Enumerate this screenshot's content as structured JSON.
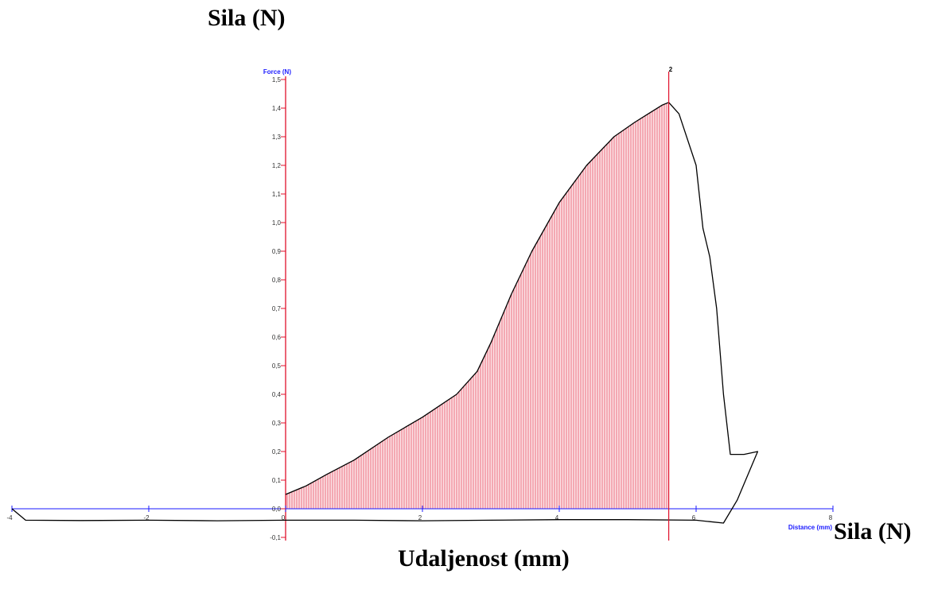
{
  "labels": {
    "top_left": "Sila  (N)",
    "right": "Sila  (N)",
    "bottom": "Udaljenost (mm)"
  },
  "chart_data": {
    "type": "line",
    "xlabel": "Distance (mm)",
    "ylabel": "Force (N)",
    "xlim": [
      -4,
      8
    ],
    "ylim": [
      -0.1,
      1.5
    ],
    "x_ticks": [
      -4,
      -2,
      0,
      2,
      4,
      6,
      8
    ],
    "x_tick_labels": [
      "-4",
      "-2",
      "0",
      "2",
      "4",
      "6",
      "8"
    ],
    "y_ticks": [
      -0.1,
      0.0,
      0.1,
      0.2,
      0.3,
      0.4,
      0.5,
      0.6,
      0.7,
      0.8,
      0.9,
      1.0,
      1.1,
      1.2,
      1.3,
      1.4,
      1.5
    ],
    "y_tick_labels": [
      "-0,1",
      "0,0",
      "0,1",
      "0,2",
      "0,3",
      "0,4",
      "0,5",
      "0,6",
      "0,7",
      "0,8",
      "0,9",
      "1,0",
      "1,1",
      "1,2",
      "1,3",
      "1,4",
      "1,5"
    ],
    "marker": {
      "label": "2",
      "x": 5.6
    },
    "shaded_range": [
      0,
      5.6
    ],
    "series": [
      {
        "x": [
          0,
          0.1,
          0.3,
          0.6,
          1.0,
          1.5,
          2.0,
          2.5,
          2.8,
          3.0,
          3.3,
          3.6,
          4.0,
          4.4,
          4.8,
          5.1,
          5.3,
          5.5,
          5.6,
          5.75,
          6.0,
          6.1,
          6.2,
          6.3,
          6.4,
          6.5,
          6.7,
          6.9,
          6.6,
          6.4,
          6.2,
          6.0,
          5.0,
          4.0,
          3.0,
          2.0,
          1.0,
          0,
          -1.0,
          -2.0,
          -3.0,
          -3.8,
          -4.0
        ],
        "y": [
          0.05,
          0.06,
          0.08,
          0.12,
          0.17,
          0.25,
          0.32,
          0.4,
          0.48,
          0.58,
          0.75,
          0.9,
          1.07,
          1.2,
          1.3,
          1.35,
          1.38,
          1.41,
          1.42,
          1.38,
          1.2,
          0.98,
          0.88,
          0.7,
          0.4,
          0.19,
          0.19,
          0.2,
          0.03,
          -0.05,
          -0.045,
          -0.04,
          -0.038,
          -0.038,
          -0.04,
          -0.042,
          -0.04,
          -0.04,
          -0.042,
          -0.04,
          -0.041,
          -0.04,
          0.0
        ]
      }
    ],
    "colors": {
      "axis": "#1a1aff",
      "marker": "#e0112b",
      "fill": "#f28b96",
      "line": "#000000"
    }
  }
}
